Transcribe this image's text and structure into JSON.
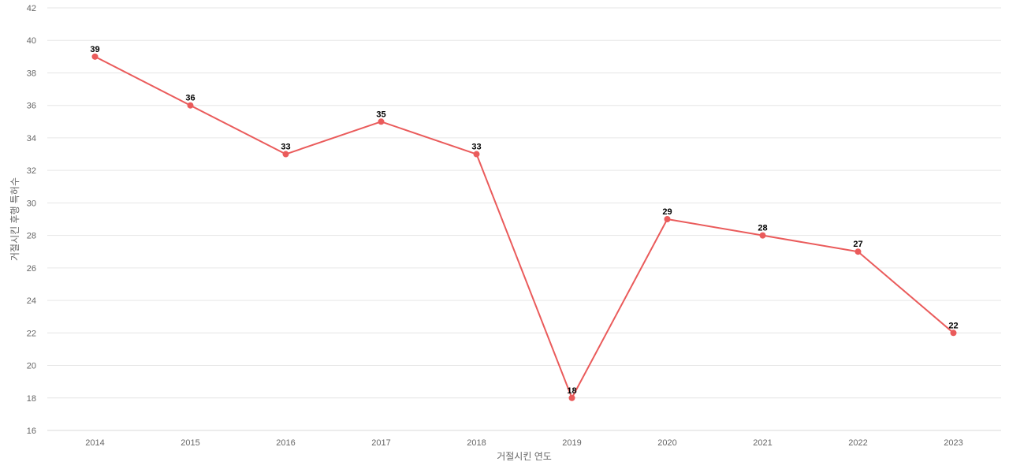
{
  "chart_data": {
    "type": "line",
    "title": "",
    "xlabel": "거절시킨 연도",
    "ylabel": "거절시킨 후행 특허수",
    "categories": [
      "2014",
      "2015",
      "2016",
      "2017",
      "2018",
      "2019",
      "2020",
      "2021",
      "2022",
      "2023"
    ],
    "series": [
      {
        "values": [
          39,
          36,
          33,
          35,
          33,
          18,
          29,
          28,
          27,
          22
        ],
        "color": "#ea5b5b"
      }
    ],
    "ylim": [
      16,
      42
    ],
    "yticks": [
      "16",
      "18",
      "20",
      "22",
      "24",
      "26",
      "28",
      "30",
      "32",
      "34",
      "36",
      "38",
      "40",
      "42"
    ],
    "data_labels": [
      "39",
      "36",
      "33",
      "35",
      "33",
      "18",
      "29",
      "28",
      "27",
      "22"
    ],
    "grid": true,
    "legend": "none",
    "colors": {
      "line": "#ea5b5b",
      "grid": "#e6e6e6",
      "tick_text": "#666666",
      "label_text": "#000000"
    }
  }
}
